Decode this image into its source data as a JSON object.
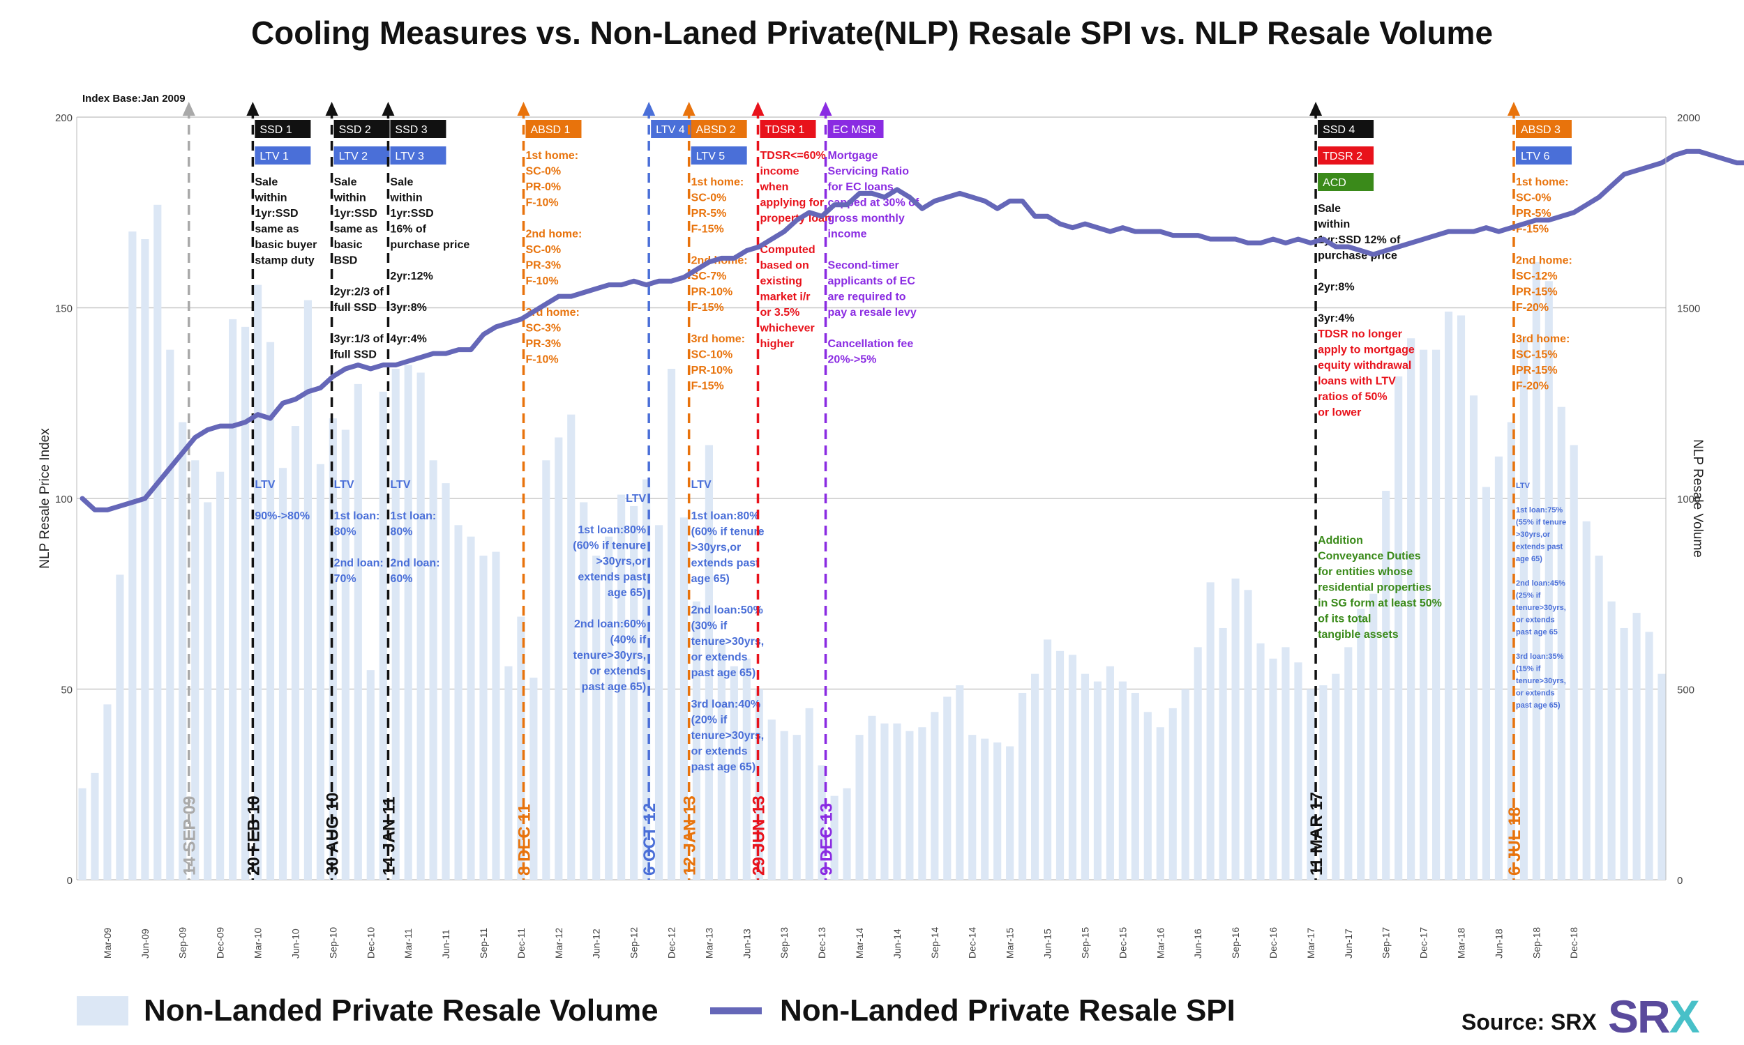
{
  "title": "Cooling Measures vs. Non-Laned Private(NLP) Resale SPI vs. NLP Resale Volume",
  "index_base": "Index Base:Jan 2009",
  "source": "Source: SRX",
  "logo": {
    "main": "SR",
    "accent": "X"
  },
  "legend": {
    "volume_label": "Non-Landed Private Resale Volume",
    "spi_label": "Non-Landed Private Resale SPI"
  },
  "colors": {
    "bar": "#dce7f5",
    "line": "#6567b8",
    "black": "#111111",
    "orange": "#e8730c",
    "blue": "#4a6fd8",
    "red": "#e8121b",
    "purple": "#8a2be2",
    "green": "#3a8a1a",
    "grey": "#a9a9a9"
  },
  "chart_data": {
    "type": "bar+line",
    "title": "Cooling Measures vs. Non-Laned Private(NLP) Resale SPI vs. NLP Resale Volume",
    "ylabel_left": "NLP Resale Price Index",
    "ylabel_right": "NLP Resale Volume",
    "ylim_left": [
      0,
      200
    ],
    "ylim_right": [
      0,
      2000
    ],
    "left_ticks": [
      "0",
      "50",
      "100",
      "150",
      "200"
    ],
    "right_ticks": [
      "0",
      "500",
      "1000",
      "1500",
      "2000"
    ],
    "xtick_labels": [
      "Mar-09",
      "Jun-09",
      "Sep-09",
      "Dec-09",
      "Mar-10",
      "Jun-10",
      "Sep-10",
      "Dec-10",
      "Mar-11",
      "Jun-11",
      "Sep-11",
      "Dec-11",
      "Mar-12",
      "Jun-12",
      "Sep-12",
      "Dec-12",
      "Mar-13",
      "Jun-13",
      "Sep-13",
      "Dec-13",
      "Mar-14",
      "Jun-14",
      "Sep-14",
      "Dec-14",
      "Mar-15",
      "Jun-15",
      "Sep-15",
      "Dec-15",
      "Mar-16",
      "Jun-16",
      "Sep-16",
      "Dec-16",
      "Mar-17",
      "Jun-17",
      "Sep-17",
      "Dec-17",
      "Mar-18",
      "Jun-18",
      "Sep-18",
      "Dec-18"
    ],
    "grid": true,
    "months_start": "Jan-09",
    "volume": [
      240,
      280,
      460,
      800,
      1700,
      1680,
      1770,
      1390,
      1200,
      1100,
      990,
      1070,
      1470,
      1450,
      1560,
      1410,
      1080,
      1190,
      1520,
      1090,
      1210,
      1180,
      1300,
      550,
      1280,
      1340,
      1350,
      1330,
      1100,
      1040,
      930,
      900,
      850,
      860,
      560,
      690,
      530,
      1100,
      1160,
      1220,
      990,
      850,
      900,
      1010,
      980,
      1050,
      930,
      1340,
      950,
      730,
      1140,
      630,
      560,
      580,
      500,
      420,
      390,
      380,
      450,
      300,
      220,
      240,
      380,
      430,
      410,
      410,
      390,
      400,
      440,
      480,
      510,
      380,
      370,
      360,
      350,
      490,
      540,
      630,
      600,
      590,
      540,
      520,
      560,
      520,
      490,
      440,
      400,
      450,
      500,
      610,
      780,
      660,
      790,
      760,
      620,
      580,
      610,
      570,
      500,
      510,
      540,
      610,
      710,
      750,
      1020,
      1320,
      1420,
      1390,
      1390,
      1490,
      1480,
      1270,
      1030,
      1110,
      1200,
      1420,
      1620,
      1570,
      1240,
      1140,
      940,
      850,
      730,
      660,
      700,
      650,
      540
    ],
    "spi": [
      100,
      97,
      97,
      98,
      99,
      100,
      104,
      108,
      112,
      116,
      118,
      119,
      119,
      120,
      122,
      121,
      125,
      126,
      128,
      129,
      132,
      134,
      135,
      134,
      135,
      135,
      136,
      137,
      138,
      138,
      139,
      139,
      143,
      145,
      146,
      147,
      149,
      151,
      153,
      153,
      154,
      155,
      156,
      156,
      157,
      156,
      157,
      157,
      158,
      160,
      162,
      163,
      163,
      165,
      166,
      168,
      170,
      173,
      175,
      174,
      177,
      177,
      180,
      180,
      179,
      181,
      179,
      176,
      178,
      179,
      180,
      179,
      178,
      176,
      178,
      178,
      174,
      174,
      172,
      171,
      172,
      171,
      170,
      171,
      170,
      170,
      170,
      169,
      169,
      169,
      168,
      168,
      168,
      167,
      167,
      168,
      167,
      168,
      167,
      168,
      166,
      166,
      165,
      164,
      165,
      166,
      167,
      168,
      169,
      170,
      170,
      170,
      171,
      170,
      171,
      172,
      173,
      173,
      174,
      175,
      177,
      179,
      182,
      185,
      186,
      187,
      188,
      190,
      191,
      191,
      190,
      189,
      188,
      188,
      188,
      187,
      186
    ]
  },
  "measures": [
    {
      "date_label": "14 SEP 09",
      "color_key": "grey",
      "month_index": 8.5,
      "tags": [],
      "text_blocks": []
    },
    {
      "date_label": "20 FEB 10",
      "color_key": "black",
      "month_index": 13.6,
      "tags": [
        {
          "label": "SSD 1",
          "color_key": "black"
        },
        {
          "label": "LTV 1",
          "color_key": "blue"
        }
      ],
      "text_blocks": [
        {
          "color_key": "black",
          "lines": [
            "Sale",
            "within",
            "1yr:SSD",
            "same as",
            "basic buyer",
            "stamp duty"
          ]
        },
        {
          "color_key": "blue",
          "lines": [
            "LTV",
            "",
            "90%->80%"
          ]
        }
      ]
    },
    {
      "date_label": "30 AUG 10",
      "color_key": "black",
      "month_index": 19.9,
      "tags": [
        {
          "label": "SSD 2",
          "color_key": "black"
        },
        {
          "label": "LTV 2",
          "color_key": "blue"
        }
      ],
      "text_blocks": [
        {
          "color_key": "black",
          "lines": [
            "Sale",
            "within",
            "1yr:SSD",
            "same as",
            "basic",
            "BSD",
            "",
            "2yr:2/3 of",
            "full SSD",
            "",
            "3yr:1/3 of",
            "full SSD"
          ]
        },
        {
          "color_key": "blue",
          "lines": [
            "LTV",
            "",
            "1st loan:",
            "80%",
            "",
            "2nd loan:",
            "70%"
          ]
        }
      ]
    },
    {
      "date_label": "14 JAN 11",
      "color_key": "black",
      "month_index": 24.4,
      "tags": [
        {
          "label": "SSD 3",
          "color_key": "black"
        },
        {
          "label": "LTV 3",
          "color_key": "blue"
        }
      ],
      "text_blocks": [
        {
          "color_key": "black",
          "lines": [
            "Sale",
            "within",
            "1yr:SSD",
            "16% of",
            "purchase price",
            "",
            "2yr:12%",
            "",
            "3yr:8%",
            "",
            "4yr:4%"
          ]
        },
        {
          "color_key": "blue",
          "lines": [
            "LTV",
            "",
            "1st loan:",
            "80%",
            "",
            "2nd loan:",
            "60%"
          ]
        }
      ]
    },
    {
      "date_label": "8 DEC 11",
      "color_key": "orange",
      "month_index": 35.2,
      "tags": [
        {
          "label": "ABSD 1",
          "color_key": "orange"
        }
      ],
      "text_blocks": [
        {
          "color_key": "orange",
          "lines": [
            "1st home:",
            "SC-0%",
            "PR-0%",
            "F-10%",
            "",
            "2nd home:",
            "SC-0%",
            "PR-3%",
            "F-10%",
            "",
            "3rd home:",
            "SC-3%",
            "PR-3%",
            "F-10%"
          ]
        }
      ]
    },
    {
      "date_label": "6 OCT 12",
      "color_key": "blue",
      "month_index": 45.2,
      "tags": [
        {
          "label": "LTV 4",
          "color_key": "blue"
        }
      ],
      "text_blocks": [
        {
          "color_key": "blue",
          "lines": [
            "LTV",
            "",
            "1st loan:80%",
            "(60% if tenure",
            ">30yrs,or",
            "extends past",
            "age 65)",
            "",
            "2nd loan:60%",
            "(40% if",
            "tenure>30yrs,",
            "or extends",
            "past age 65)"
          ]
        }
      ]
    },
    {
      "date_label": "12 JAN 13",
      "color_key": "orange",
      "month_index": 48.4,
      "tags": [
        {
          "label": "ABSD 2",
          "color_key": "orange"
        },
        {
          "label": "LTV 5",
          "color_key": "blue"
        }
      ],
      "text_blocks": [
        {
          "color_key": "orange",
          "lines": [
            "1st home:",
            "SC-0%",
            "PR-5%",
            "F-15%",
            "",
            "2nd home:",
            "SC-7%",
            "PR-10%",
            "F-15%",
            "",
            "3rd home:",
            "SC-10%",
            "PR-10%",
            "F-15%"
          ]
        },
        {
          "color_key": "blue",
          "lines": [
            "LTV",
            "",
            "1st loan:80%",
            "(60% if tenure",
            ">30yrs,or",
            "extends past",
            "age 65)",
            "",
            "2nd loan:50%",
            "(30% if",
            "tenure>30yrs,",
            "or extends",
            "past age 65)",
            "",
            "3rd loan:40%",
            "(20% if",
            "tenure>30yrs,",
            "or extends",
            "past age 65)"
          ]
        }
      ]
    },
    {
      "date_label": "29 JUN 13",
      "color_key": "red",
      "month_index": 53.9,
      "tags": [
        {
          "label": "TDSR 1",
          "color_key": "red"
        }
      ],
      "text_blocks": [
        {
          "color_key": "red",
          "lines": [
            "TDSR<=60%",
            "income",
            "when",
            "applying for",
            "property loan",
            "",
            "Computed",
            "based on",
            "existing",
            "market i/r",
            "or 3.5%",
            "whichever",
            "higher"
          ]
        }
      ]
    },
    {
      "date_label": "9 DEC 13",
      "color_key": "purple",
      "month_index": 59.3,
      "tags": [
        {
          "label": "EC MSR",
          "color_key": "purple"
        }
      ],
      "text_blocks": [
        {
          "color_key": "purple",
          "lines": [
            "Mortgage",
            "Servicing Ratio",
            "for EC loans",
            "capped at 30% of",
            "gross monthly",
            "income",
            "",
            "Second-timer",
            "applicants of EC",
            "are required to",
            "pay a resale levy",
            "",
            "Cancellation fee",
            "20%->5%"
          ]
        }
      ]
    },
    {
      "date_label": "11 MAR 17",
      "color_key": "black",
      "month_index": 98.4,
      "tags": [
        {
          "label": "SSD 4",
          "color_key": "black"
        },
        {
          "label": "TDSR 2",
          "color_key": "red"
        },
        {
          "label": "ACD",
          "color_key": "green"
        }
      ],
      "text_blocks": [
        {
          "color_key": "black",
          "lines": [
            "Sale",
            "within",
            "1yr:SSD 12% of",
            "purchase price",
            "",
            "2yr:8%",
            "",
            "3yr:4%"
          ]
        },
        {
          "color_key": "red",
          "lines": [
            "TDSR no longer",
            "apply to mortgage",
            "equity withdrawal",
            "loans with LTV",
            "ratios of 50%",
            "or lower"
          ]
        },
        {
          "color_key": "green",
          "lines": [
            "Addition",
            "Conveyance Duties",
            "for entities whose",
            "residential properties",
            "in SG form at least 50%",
            "of its total",
            "tangible assets"
          ]
        }
      ]
    },
    {
      "date_label": "6 JUL 18",
      "color_key": "orange",
      "month_index": 114.2,
      "tags": [
        {
          "label": "ABSD 3",
          "color_key": "orange"
        },
        {
          "label": "LTV 6",
          "color_key": "blue"
        }
      ],
      "text_blocks": [
        {
          "color_key": "orange",
          "lines": [
            "1st home:",
            "SC-0%",
            "PR-5%",
            "F-15%",
            "",
            "2nd home:",
            "SC-12%",
            "PR-15%",
            "F-20%",
            "",
            "3rd home:",
            "SC-15%",
            "PR-15%",
            "F-20%"
          ]
        },
        {
          "color_key": "blue",
          "lines": [
            "LTV",
            "",
            "1st loan:75%",
            "(55% if tenure",
            ">30yrs,or",
            "extends past",
            "age 65)",
            "",
            "2nd loan:45%",
            "(25% if",
            "tenure>30yrs,",
            "or extends",
            "past age 65",
            "",
            "3rd loan:35%",
            "(15% if",
            "tenure>30yrs,",
            "or extends",
            "past age 65)"
          ]
        }
      ]
    }
  ]
}
